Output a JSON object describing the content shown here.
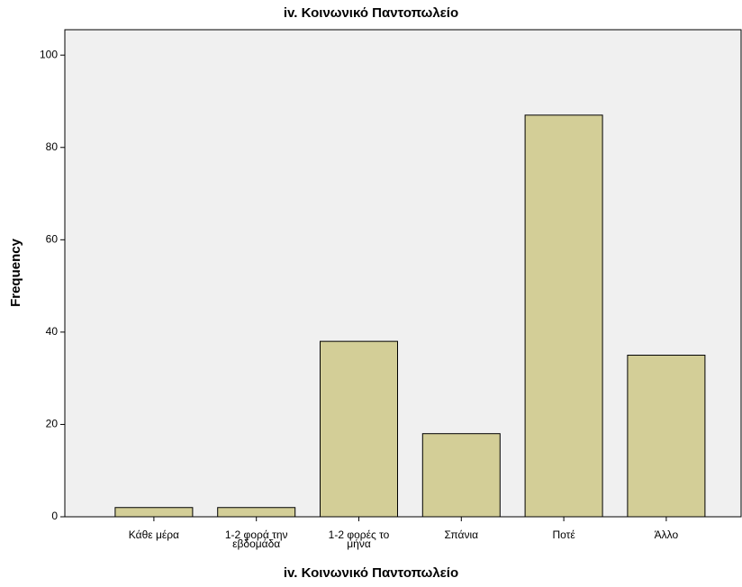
{
  "chart_data": {
    "type": "bar",
    "title": "iv. Κοινωνικό Παντοπωλείο",
    "x_label": "iv. Κοινωνικό Παντοπωλείο",
    "y_label": "Frequency",
    "categories": [
      "Κάθε μέρα",
      "1-2 φορά την εβδομάδα",
      "1-2 φορές το μήνα",
      "Σπάνια",
      "Ποτέ",
      "Άλλο"
    ],
    "values": [
      2,
      2,
      38,
      18,
      87,
      35
    ],
    "color": "#d3ce97",
    "ylim": [
      0,
      105.5
    ],
    "yticks": [
      0,
      20,
      40,
      60,
      80,
      100
    ],
    "grid": false
  }
}
